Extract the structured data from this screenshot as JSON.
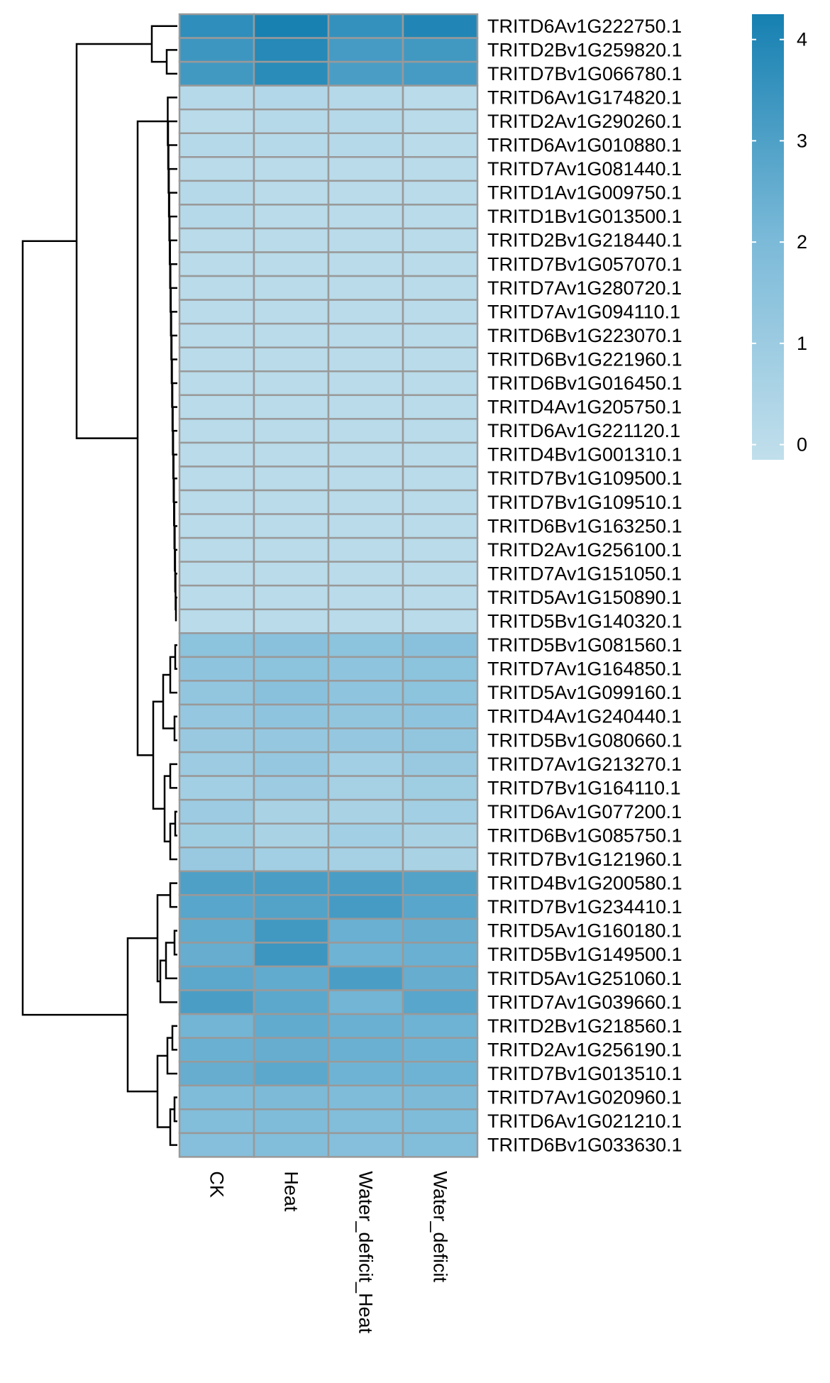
{
  "chart_data": {
    "type": "heatmap",
    "title": "",
    "xlabel": "",
    "ylabel": "",
    "columns": [
      "CK",
      "Heat",
      "Water_deficit_Heat",
      "Water_deficit"
    ],
    "rows": [
      "TRITD6Av1G222750.1",
      "TRITD2Bv1G259820.1",
      "TRITD7Bv1G066780.1",
      "TRITD6Av1G174820.1",
      "TRITD2Av1G290260.1",
      "TRITD6Av1G010880.1",
      "TRITD7Av1G081440.1",
      "TRITD1Av1G009750.1",
      "TRITD1Bv1G013500.1",
      "TRITD2Bv1G218440.1",
      "TRITD7Bv1G057070.1",
      "TRITD7Av1G280720.1",
      "TRITD7Av1G094110.1",
      "TRITD6Bv1G223070.1",
      "TRITD6Bv1G221960.1",
      "TRITD6Bv1G016450.1",
      "TRITD4Av1G205750.1",
      "TRITD6Av1G221120.1",
      "TRITD4Bv1G001310.1",
      "TRITD7Bv1G109500.1",
      "TRITD7Bv1G109510.1",
      "TRITD6Bv1G163250.1",
      "TRITD2Av1G256100.1",
      "TRITD7Av1G151050.1",
      "TRITD5Av1G150890.1",
      "TRITD5Bv1G140320.1",
      "TRITD5Bv1G081560.1",
      "TRITD7Av1G164850.1",
      "TRITD5Av1G099160.1",
      "TRITD4Av1G240440.1",
      "TRITD5Bv1G080660.1",
      "TRITD7Av1G213270.1",
      "TRITD7Bv1G164110.1",
      "TRITD6Av1G077200.1",
      "TRITD6Bv1G085750.1",
      "TRITD7Bv1G121960.1",
      "TRITD4Bv1G200580.1",
      "TRITD7Bv1G234410.1",
      "TRITD5Av1G160180.1",
      "TRITD5Bv1G149500.1",
      "TRITD5Av1G251060.1",
      "TRITD7Av1G039660.1",
      "TRITD2Bv1G218560.1",
      "TRITD2Av1G256190.1",
      "TRITD7Bv1G013510.1",
      "TRITD7Av1G020960.1",
      "TRITD6Av1G021210.1",
      "TRITD6Bv1G033630.1"
    ],
    "values": [
      [
        3.7,
        4.2,
        3.6,
        4.0
      ],
      [
        3.4,
        3.9,
        3.2,
        3.3
      ],
      [
        3.3,
        3.8,
        3.1,
        3.2
      ],
      [
        0.2,
        0.3,
        0.2,
        0.1
      ],
      [
        0.1,
        0.2,
        0.2,
        0.1
      ],
      [
        0.2,
        0.2,
        0.2,
        0.1
      ],
      [
        0.1,
        0.1,
        0.1,
        0.1
      ],
      [
        0.2,
        0.1,
        0.1,
        0.1
      ],
      [
        0.2,
        0.1,
        0.1,
        0.1
      ],
      [
        0.1,
        0.1,
        0.1,
        0.1
      ],
      [
        0.1,
        0.1,
        0.1,
        0.1
      ],
      [
        0.1,
        0.1,
        0.1,
        0.1
      ],
      [
        0.1,
        0.1,
        0.1,
        0.1
      ],
      [
        0.1,
        0.1,
        0.1,
        0.1
      ],
      [
        0.1,
        0.1,
        0.1,
        0.1
      ],
      [
        0.1,
        0.1,
        0.1,
        0.1
      ],
      [
        0.1,
        0.1,
        0.1,
        0.1
      ],
      [
        0.1,
        0.1,
        0.1,
        0.1
      ],
      [
        0.1,
        0.1,
        0.1,
        0.1
      ],
      [
        0.1,
        0.1,
        0.1,
        0.1
      ],
      [
        0.1,
        0.1,
        0.1,
        0.1
      ],
      [
        0.1,
        0.1,
        0.1,
        0.1
      ],
      [
        0.1,
        0.1,
        0.1,
        0.1
      ],
      [
        0.1,
        0.1,
        0.1,
        0.1
      ],
      [
        0.1,
        0.1,
        0.1,
        0.1
      ],
      [
        0.1,
        0.1,
        0.1,
        0.1
      ],
      [
        1.5,
        1.6,
        1.5,
        1.6
      ],
      [
        1.4,
        1.5,
        1.4,
        1.5
      ],
      [
        1.3,
        1.6,
        1.4,
        1.5
      ],
      [
        1.2,
        1.4,
        1.3,
        1.4
      ],
      [
        1.1,
        1.2,
        1.2,
        1.3
      ],
      [
        1.0,
        1.2,
        0.8,
        1.1
      ],
      [
        0.8,
        1.0,
        0.7,
        0.9
      ],
      [
        1.0,
        0.6,
        0.6,
        0.8
      ],
      [
        0.9,
        0.6,
        0.8,
        0.6
      ],
      [
        1.1,
        0.8,
        0.7,
        0.6
      ],
      [
        3.0,
        3.1,
        3.1,
        2.9
      ],
      [
        2.8,
        2.9,
        3.2,
        2.8
      ],
      [
        2.6,
        3.3,
        2.4,
        2.5
      ],
      [
        2.5,
        3.4,
        2.3,
        2.4
      ],
      [
        2.7,
        2.6,
        3.1,
        2.5
      ],
      [
        3.1,
        2.7,
        2.2,
        2.8
      ],
      [
        2.2,
        2.6,
        2.4,
        2.3
      ],
      [
        2.4,
        2.5,
        2.4,
        2.3
      ],
      [
        2.5,
        2.7,
        2.3,
        2.3
      ],
      [
        1.9,
        2.0,
        1.9,
        2.0
      ],
      [
        1.8,
        1.9,
        1.8,
        1.9
      ],
      [
        1.7,
        1.8,
        1.7,
        1.8
      ]
    ],
    "legend": {
      "ticks": [
        "4",
        "3",
        "2",
        "1",
        "0"
      ],
      "min": -0.15,
      "max": 4.25,
      "placement": "top-right"
    },
    "colors": {
      "low": "#c1dfec",
      "mid": "#7ab9d8",
      "high": "#1680b1",
      "cell_border": "#999999",
      "dendrogram": "#000000"
    }
  }
}
